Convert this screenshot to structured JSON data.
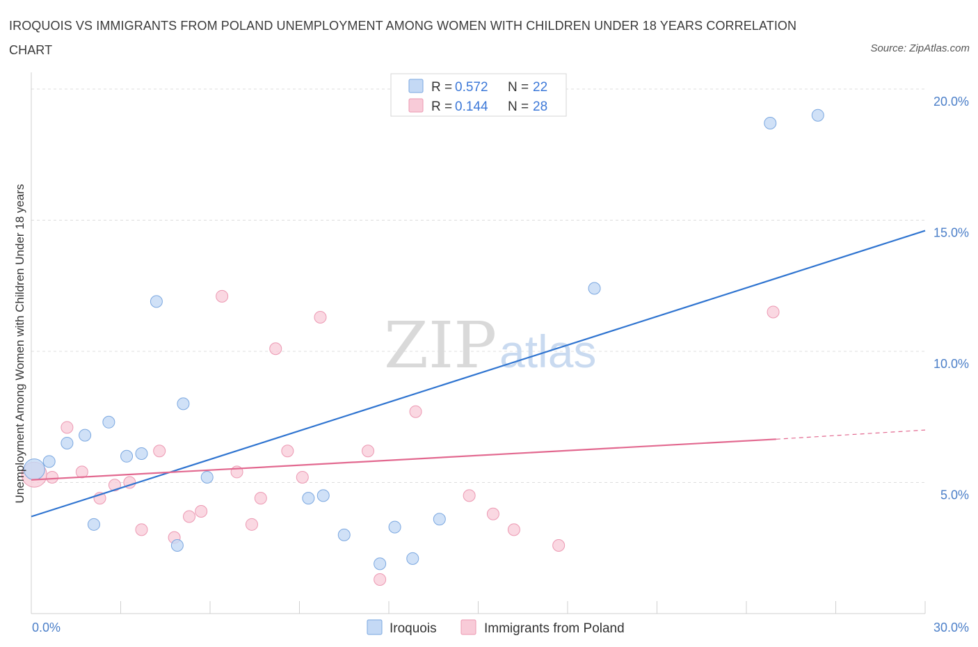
{
  "title": "IROQUOIS VS IMMIGRANTS FROM POLAND UNEMPLOYMENT AMONG WOMEN WITH CHILDREN UNDER 18 YEARS CORRELATION CHART",
  "source": "Source: ZipAtlas.com",
  "watermark": {
    "zip": "ZIP",
    "atlas": "atlas"
  },
  "colors": {
    "iroquois_fill": "#c4d9f5",
    "iroquois_stroke": "#7aa7e0",
    "iroquois_line": "#2f74d0",
    "poland_fill": "#f8cbd8",
    "poland_stroke": "#ec98b2",
    "poland_line": "#e2688f",
    "tick_label": "#4a7ec8",
    "grid": "#dddddd"
  },
  "legend": {
    "rows": [
      {
        "r_label": "R = ",
        "r_value": "0.572",
        "n_label": "N = ",
        "n_value": "22"
      },
      {
        "r_label": "R = ",
        "r_value": "0.144",
        "n_label": "N = ",
        "n_value": "28"
      }
    ]
  },
  "chart_data": {
    "type": "scatter",
    "title": "IROQUOIS VS IMMIGRANTS FROM POLAND UNEMPLOYMENT AMONG WOMEN WITH CHILDREN UNDER 18 YEARS CORRELATION CHART",
    "xlabel": "",
    "ylabel": "Unemployment Among Women with Children Under 18 years",
    "xlim": [
      0,
      30
    ],
    "ylim": [
      0,
      20
    ],
    "x_tick_labels": [
      "0.0%",
      "30.0%"
    ],
    "y_ticks": [
      5,
      10,
      15,
      20
    ],
    "y_tick_labels": [
      "5.0%",
      "10.0%",
      "15.0%",
      "20.0%"
    ],
    "grid": true,
    "legend_position": "top-center",
    "series": [
      {
        "name": "Iroquois",
        "R": 0.572,
        "N": 22,
        "trend": {
          "x": [
            0,
            30
          ],
          "y": [
            3.7,
            14.6
          ]
        },
        "points": [
          {
            "x": 0.1,
            "y": 5.5
          },
          {
            "x": 0.6,
            "y": 5.8
          },
          {
            "x": 1.2,
            "y": 6.5
          },
          {
            "x": 1.8,
            "y": 6.8
          },
          {
            "x": 2.1,
            "y": 3.4
          },
          {
            "x": 2.6,
            "y": 7.3
          },
          {
            "x": 3.2,
            "y": 6.0
          },
          {
            "x": 3.7,
            "y": 6.1
          },
          {
            "x": 4.2,
            "y": 11.9
          },
          {
            "x": 4.9,
            "y": 2.6
          },
          {
            "x": 5.1,
            "y": 8.0
          },
          {
            "x": 5.9,
            "y": 5.2
          },
          {
            "x": 9.3,
            "y": 4.4
          },
          {
            "x": 9.8,
            "y": 4.5
          },
          {
            "x": 10.5,
            "y": 3.0
          },
          {
            "x": 11.7,
            "y": 1.9
          },
          {
            "x": 12.2,
            "y": 3.3
          },
          {
            "x": 12.8,
            "y": 2.1
          },
          {
            "x": 13.7,
            "y": 3.6
          },
          {
            "x": 18.9,
            "y": 12.4
          },
          {
            "x": 24.8,
            "y": 18.7
          },
          {
            "x": 26.4,
            "y": 19.0
          }
        ]
      },
      {
        "name": "Immigrants from Poland",
        "R": 0.144,
        "N": 28,
        "trend": {
          "x": [
            0,
            25
          ],
          "y": [
            5.1,
            6.65
          ]
        },
        "trend_dashed": {
          "x": [
            25,
            30
          ],
          "y": [
            6.65,
            7.0
          ]
        },
        "points": [
          {
            "x": 0.1,
            "y": 5.3
          },
          {
            "x": 0.7,
            "y": 5.2
          },
          {
            "x": 1.2,
            "y": 7.1
          },
          {
            "x": 1.7,
            "y": 5.4
          },
          {
            "x": 2.3,
            "y": 4.4
          },
          {
            "x": 2.8,
            "y": 4.9
          },
          {
            "x": 3.3,
            "y": 5.0
          },
          {
            "x": 3.7,
            "y": 3.2
          },
          {
            "x": 4.3,
            "y": 6.2
          },
          {
            "x": 4.8,
            "y": 2.9
          },
          {
            "x": 5.3,
            "y": 3.7
          },
          {
            "x": 5.7,
            "y": 3.9
          },
          {
            "x": 6.4,
            "y": 12.1
          },
          {
            "x": 6.9,
            "y": 5.4
          },
          {
            "x": 7.4,
            "y": 3.4
          },
          {
            "x": 7.7,
            "y": 4.4
          },
          {
            "x": 8.2,
            "y": 10.1
          },
          {
            "x": 8.6,
            "y": 6.2
          },
          {
            "x": 9.1,
            "y": 5.2
          },
          {
            "x": 9.7,
            "y": 11.3
          },
          {
            "x": 11.3,
            "y": 6.2
          },
          {
            "x": 11.7,
            "y": 1.3
          },
          {
            "x": 12.9,
            "y": 7.7
          },
          {
            "x": 14.7,
            "y": 4.5
          },
          {
            "x": 15.5,
            "y": 3.8
          },
          {
            "x": 16.2,
            "y": 3.2
          },
          {
            "x": 17.7,
            "y": 2.6
          },
          {
            "x": 24.9,
            "y": 11.5
          }
        ]
      }
    ]
  }
}
